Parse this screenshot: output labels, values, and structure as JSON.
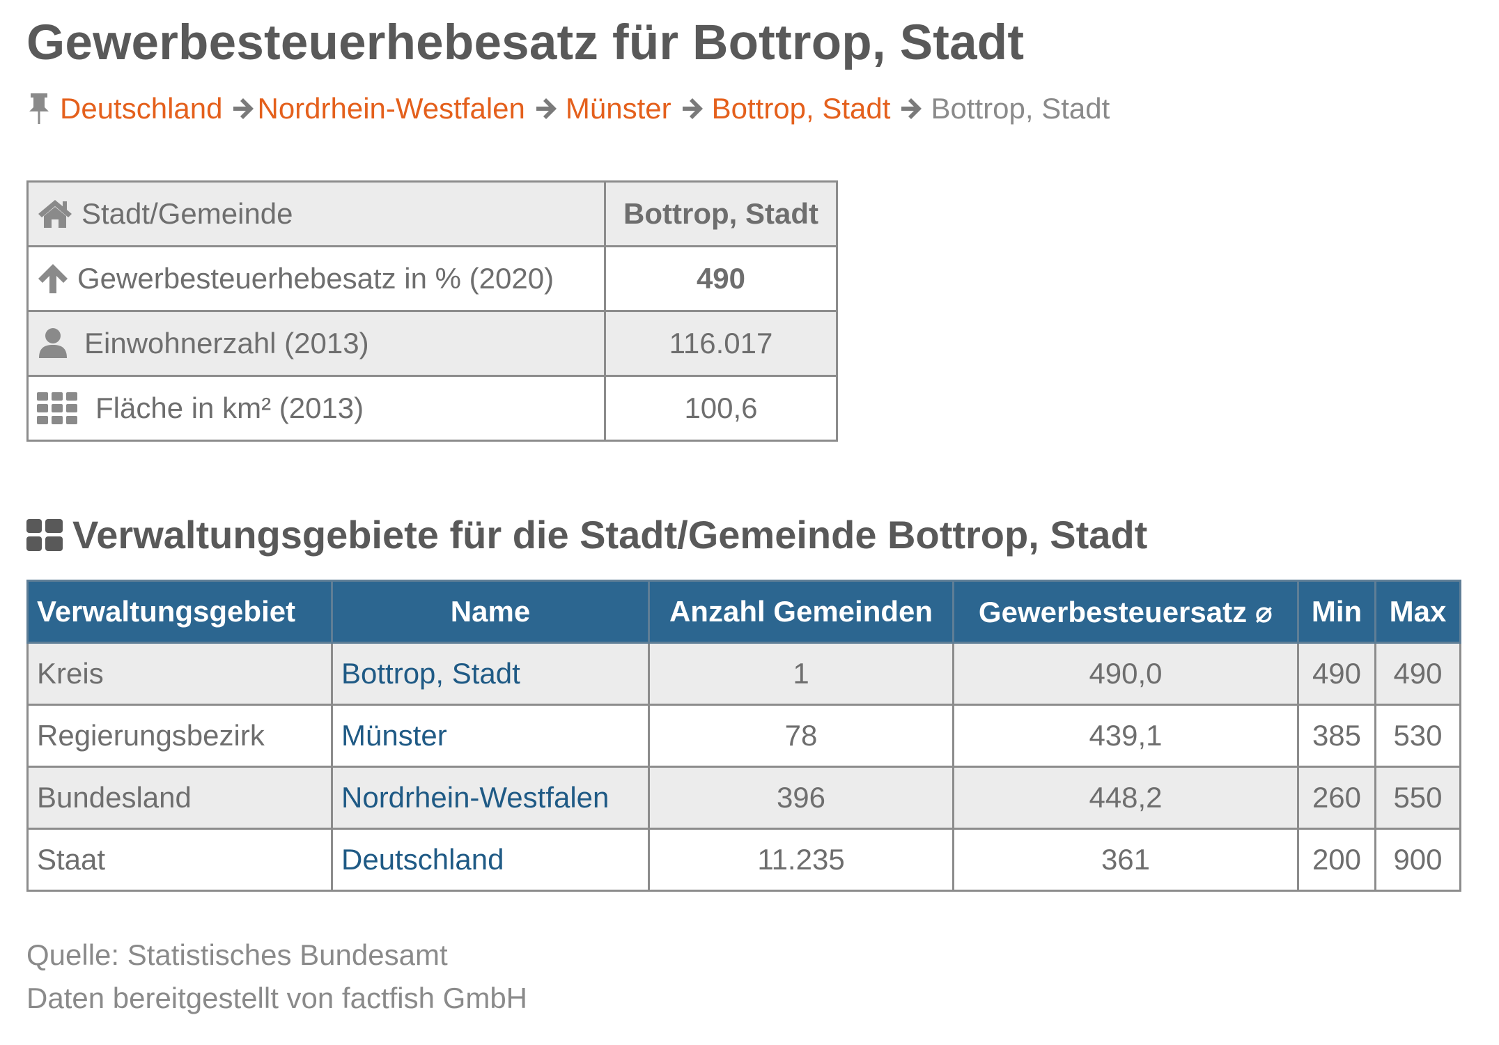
{
  "title": "Gewerbesteuerhebesatz für Bottrop, Stadt",
  "breadcrumb": {
    "links": [
      "Deutschland",
      "Nordrhein-Westfalen",
      "Münster",
      "Bottrop, Stadt"
    ],
    "current": "Bottrop, Stadt"
  },
  "info": {
    "header_label": "Stadt/Gemeinde",
    "header_value": "Bottrop, Stadt",
    "rows": [
      {
        "icon": "arrow-up-icon",
        "label": "Gewerbesteuerhebesatz in % (2020)",
        "value": "490"
      },
      {
        "icon": "user-icon",
        "label": "Einwohnerzahl (2013)",
        "value": "116.017"
      },
      {
        "icon": "grid-icon",
        "label": "Fläche in km² (2013)",
        "value": "100,6"
      }
    ]
  },
  "section": {
    "heading": "Verwaltungsgebiete für die Stadt/Gemeinde Bottrop, Stadt"
  },
  "admin_table": {
    "headers": [
      "Verwaltungsgebiet",
      "Name",
      "Anzahl Gemeinden",
      "Gewerbesteuersatz ⌀",
      "Min",
      "Max"
    ],
    "rows": [
      {
        "type": "Kreis",
        "name": "Bottrop, Stadt",
        "count": "1",
        "avg": "490,0",
        "min": "490",
        "max": "490"
      },
      {
        "type": "Regierungsbezirk",
        "name": "Münster",
        "count": "78",
        "avg": "439,1",
        "min": "385",
        "max": "530"
      },
      {
        "type": "Bundesland",
        "name": "Nordrhein-Westfalen",
        "count": "396",
        "avg": "448,2",
        "min": "260",
        "max": "550"
      },
      {
        "type": "Staat",
        "name": "Deutschland",
        "count": "11.235",
        "avg": "361",
        "min": "200",
        "max": "900"
      }
    ]
  },
  "footer": {
    "source": "Quelle: Statistisches Bundesamt",
    "provider": "Daten bereitgestellt von factfish GmbH"
  },
  "colors": {
    "link_orange": "#e4601c",
    "header_blue": "#2c6690",
    "name_link_blue": "#1f5a85",
    "text_gray": "#6e6e6e"
  }
}
